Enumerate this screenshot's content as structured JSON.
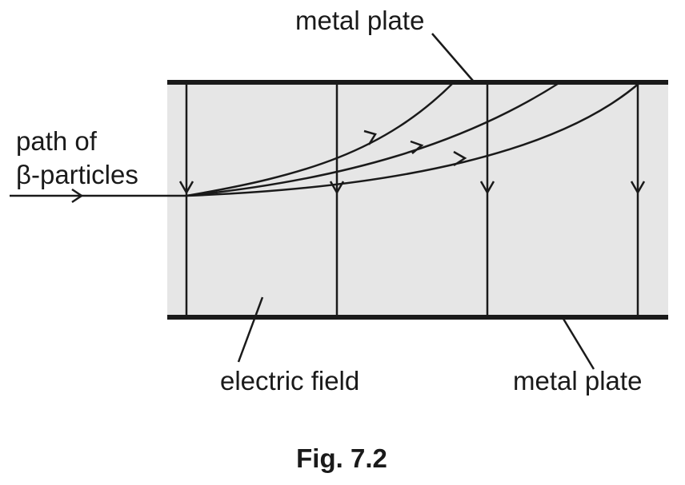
{
  "figure": {
    "labels": {
      "top_plate": "metal plate",
      "bottom_plate": "metal plate",
      "path_line1": "path of",
      "path_line2": "β-particles",
      "field": "electric field"
    },
    "caption": "Fig. 7.2",
    "colors": {
      "field_region": "#e6e6e6",
      "ink": "#1a1a1a",
      "background": "#ffffff"
    }
  }
}
